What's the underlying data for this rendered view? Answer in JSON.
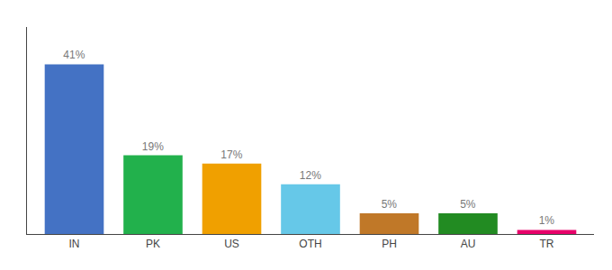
{
  "chart_data": {
    "type": "bar",
    "categories": [
      "IN",
      "PK",
      "US",
      "OTH",
      "PH",
      "AU",
      "TR"
    ],
    "values": [
      41,
      19,
      17,
      12,
      5,
      5,
      1
    ],
    "value_labels": [
      "41%",
      "19%",
      "17%",
      "12%",
      "5%",
      "5%",
      "1%"
    ],
    "colors": [
      "#4472c4",
      "#22b14c",
      "#f0a000",
      "#66c8e8",
      "#c07828",
      "#228b22",
      "#e8006a"
    ],
    "ylim": [
      0,
      50
    ],
    "data_labels": true,
    "tick_labels": "x",
    "grid": false
  }
}
